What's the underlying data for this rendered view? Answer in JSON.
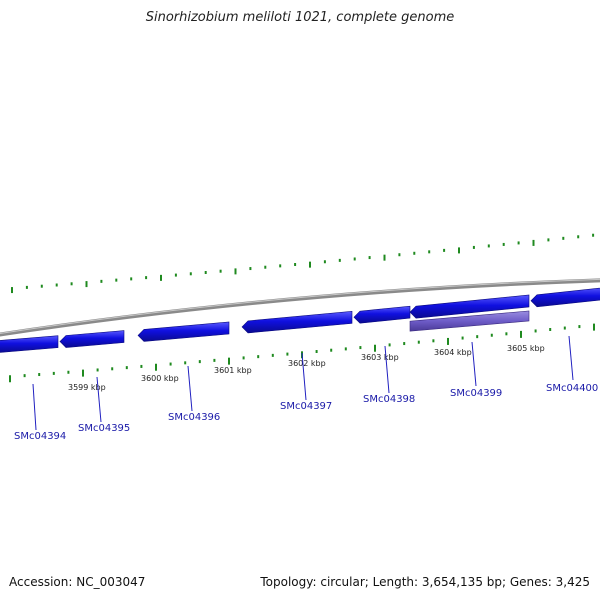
{
  "title": "Sinorhizobium meliloti 1021, complete genome",
  "footer": {
    "accession": "Accession: NC_003047",
    "summary": "Topology: circular; Length: 3,654,135 bp; Genes: 3,425"
  },
  "kbp_ticks": [
    "3599 kbp",
    "3600 kbp",
    "3601 kbp",
    "3602 kbp",
    "3603 kbp",
    "3604 kbp",
    "3605 kbp"
  ],
  "genes": [
    {
      "label": "SMc04394",
      "strand": "minus",
      "highlighted": false
    },
    {
      "label": "SMc04395",
      "strand": "minus",
      "highlighted": false
    },
    {
      "label": "SMc04396",
      "strand": "minus",
      "highlighted": false
    },
    {
      "label": "SMc04397",
      "strand": "minus",
      "highlighted": false
    },
    {
      "label": "SMc04398",
      "strand": "minus",
      "highlighted": false
    },
    {
      "label": "SMc04399",
      "strand": "minus",
      "highlighted": true
    },
    {
      "label": "SMc04400",
      "strand": "minus",
      "highlighted": false
    }
  ],
  "colors": {
    "gene": "#1010e0",
    "gene_highlight": "#6e5cc8",
    "backbone": "#8a8a8a",
    "tick": "#1f8a1f",
    "label_line": "#2020c0"
  }
}
